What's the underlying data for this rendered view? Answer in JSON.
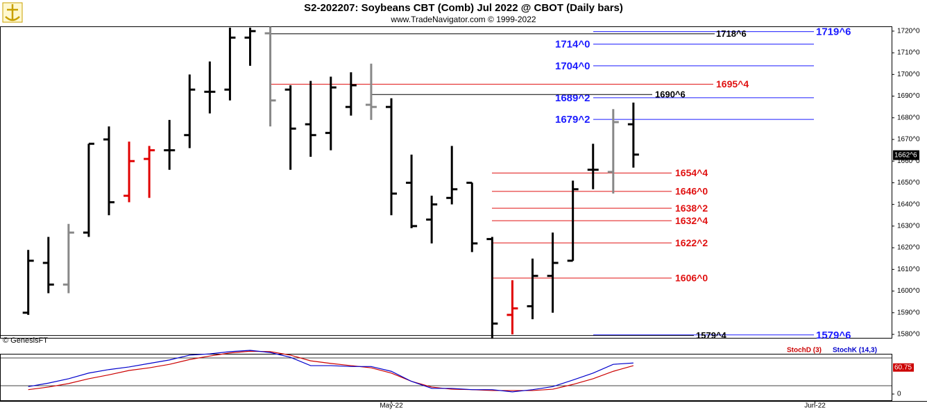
{
  "chart_data": [
    {
      "type": "ohlc",
      "title": "S2-202207:  Soybeans CBT (Comb) Jul 2022 @ CBOT  (Daily bars)",
      "subtitle": "www.TradeNavigator.com © 1999-2022",
      "watermark": "© GenesisFT",
      "ylim": [
        1578.4,
        1722.2
      ],
      "yticks": [
        {
          "value": 1580,
          "label": "1580^0"
        },
        {
          "value": 1590,
          "label": "1590^0"
        },
        {
          "value": 1600,
          "label": "1600^0"
        },
        {
          "value": 1610,
          "label": "1610^0"
        },
        {
          "value": 1620,
          "label": "1620^0"
        },
        {
          "value": 1630,
          "label": "1630^0"
        },
        {
          "value": 1640,
          "label": "1640^0"
        },
        {
          "value": 1650,
          "label": "1650^0"
        },
        {
          "value": 1660,
          "label": "1660^0"
        },
        {
          "value": 1670,
          "label": "1670^0"
        },
        {
          "value": 1680,
          "label": "1680^0"
        },
        {
          "value": 1690,
          "label": "1690^0"
        },
        {
          "value": 1700,
          "label": "1700^0"
        },
        {
          "value": 1710,
          "label": "1710^0"
        },
        {
          "value": 1720,
          "label": "1720^0"
        }
      ],
      "xlim": [
        -1.4,
        42.8
      ],
      "xticks": [
        {
          "value": 18,
          "label": "May-22"
        },
        {
          "value": 39,
          "label": "Jun-22"
        }
      ],
      "open": [
        1590,
        1613,
        1603,
        1627,
        1670,
        1644,
        1661,
        1665,
        1672,
        1692,
        1693,
        1717,
        1719,
        1693,
        1677,
        1673,
        1685,
        1686,
        1685,
        1650,
        1633,
        1643,
        1650,
        1624,
        1589,
        1593,
        1607,
        1614,
        1656,
        1655,
        1677
      ],
      "high": [
        1619,
        1625,
        1631,
        1668,
        1676,
        1669,
        1667,
        1679,
        1700,
        1706,
        1721.6,
        1721.6,
        1722,
        1695,
        1697,
        1699,
        1701,
        1705,
        1689,
        1663,
        1644,
        1667,
        1650,
        1625,
        1605,
        1615,
        1627,
        1651,
        1668,
        1684,
        1687
      ],
      "low": [
        1589,
        1599,
        1599,
        1625,
        1635,
        1641,
        1643,
        1656,
        1666,
        1682,
        1688,
        1704,
        1676,
        1656,
        1662,
        1665,
        1681,
        1679,
        1635,
        1629,
        1622,
        1640,
        1618,
        1578,
        1580,
        1587,
        1590,
        1614,
        1647,
        1645,
        1657
      ],
      "close": [
        1614,
        1603,
        1627,
        1668,
        1641,
        1660,
        1665,
        1665,
        1693,
        1692,
        1717,
        1720,
        1688,
        1675,
        1672,
        1694,
        1695,
        1685,
        1645,
        1630,
        1640,
        1647,
        1622,
        1585,
        1592,
        1607,
        1613,
        1647,
        1656,
        1678,
        1663
      ],
      "bar_colors": [
        "#000000",
        "#000000",
        "#888888",
        "#000000",
        "#000000",
        "#e00000",
        "#e00000",
        "#000000",
        "#000000",
        "#000000",
        "#000000",
        "#000000",
        "#888888",
        "#000000",
        "#000000",
        "#000000",
        "#000000",
        "#888888",
        "#000000",
        "#000000",
        "#000000",
        "#000000",
        "#000000",
        "#000000",
        "#e00000",
        "#000000",
        "#000000",
        "#000000",
        "#000000",
        "#888888",
        "#000000"
      ],
      "levels": [
        {
          "value": 1719.75,
          "label": "1719^6",
          "color": "#1a1aff"
        },
        {
          "value": 1714,
          "label": "1714^0",
          "color": "#1a1aff"
        },
        {
          "value": 1704,
          "label": "1704^0",
          "color": "#1a1aff"
        },
        {
          "value": 1689.25,
          "label": "1689^2",
          "color": "#1a1aff"
        },
        {
          "value": 1679.25,
          "label": "1679^2",
          "color": "#1a1aff"
        },
        {
          "value": 1579.75,
          "label": "1579^6",
          "color": "#1a1aff"
        },
        {
          "value": 1695.5,
          "label": "1695^4",
          "color": "#e01010"
        },
        {
          "value": 1654.5,
          "label": "1654^4",
          "color": "#e01010"
        },
        {
          "value": 1646,
          "label": "1646^0",
          "color": "#e01010"
        },
        {
          "value": 1638.25,
          "label": "1638^2",
          "color": "#e01010"
        },
        {
          "value": 1632.5,
          "label": "1632^4",
          "color": "#e01010"
        },
        {
          "value": 1622.25,
          "label": "1622^2",
          "color": "#e01010"
        },
        {
          "value": 1606,
          "label": "1606^0",
          "color": "#e01010"
        },
        {
          "value": 1718.75,
          "label": "1718^6",
          "color": "#000000"
        },
        {
          "value": 1690.75,
          "label": "1690^6",
          "color": "#000000"
        },
        {
          "value": 1579.5,
          "label": "1579^4",
          "color": "#000000"
        }
      ],
      "last_price": {
        "value": 1662.75,
        "label": "1662^6"
      }
    },
    {
      "type": "line",
      "ylim": [
        0,
        100
      ],
      "yticks": [
        0
      ],
      "series": [
        {
          "name": "StochD (3)",
          "color": "#cc0000",
          "values": [
            10,
            16,
            24,
            35,
            44,
            54,
            60,
            68,
            79,
            87,
            94,
            98,
            97,
            89,
            76,
            70,
            65,
            60,
            48,
            29,
            16,
            11,
            10,
            8,
            8,
            8,
            11,
            22,
            35,
            52,
            65
          ]
        },
        {
          "name": "StochK (14,3)",
          "color": "#0000cc",
          "values": [
            17,
            25,
            35,
            48,
            56,
            62,
            70,
            78,
            89,
            92,
            97,
            100,
            95,
            84,
            65,
            65,
            63,
            63,
            52,
            29,
            13,
            13,
            10,
            10,
            5,
            10,
            17,
            32,
            48,
            68,
            71
          ]
        }
      ],
      "last_label": 60.75
    }
  ]
}
